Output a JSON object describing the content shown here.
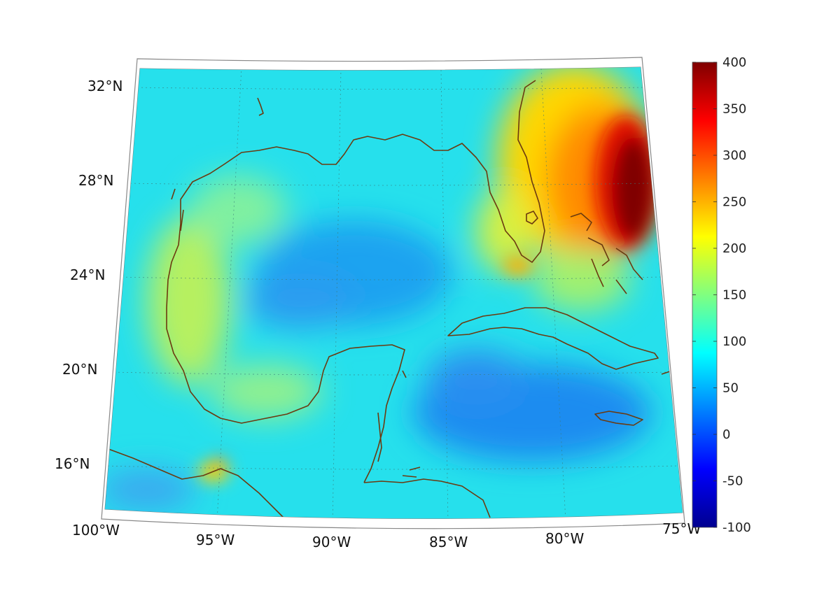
{
  "map": {
    "lon_range": [
      -100,
      -75
    ],
    "lat_range": [
      14,
      32.5
    ],
    "lat_labels": [
      {
        "value": 32,
        "text": "32°N"
      },
      {
        "value": 28,
        "text": "28°N"
      },
      {
        "value": 24,
        "text": "24°N"
      },
      {
        "value": 20,
        "text": "20°N"
      },
      {
        "value": 16,
        "text": "16°N"
      }
    ],
    "lon_labels": [
      {
        "value": -100,
        "text": "100°W"
      },
      {
        "value": -95,
        "text": "95°W"
      },
      {
        "value": -90,
        "text": "90°W"
      },
      {
        "value": -85,
        "text": "85°W"
      },
      {
        "value": -80,
        "text": "80°W"
      },
      {
        "value": -75,
        "text": "75°W"
      }
    ],
    "coastline_color": "#6b3a10",
    "ocean_color": "#2ee6e6",
    "grid": "dotted"
  },
  "colorbar": {
    "colormap": "jet",
    "range": [
      -100,
      400
    ],
    "tick_labels": [
      "400",
      "350",
      "300",
      "250",
      "200",
      "150",
      "100",
      "50",
      "0",
      "-50",
      "-100"
    ]
  }
}
